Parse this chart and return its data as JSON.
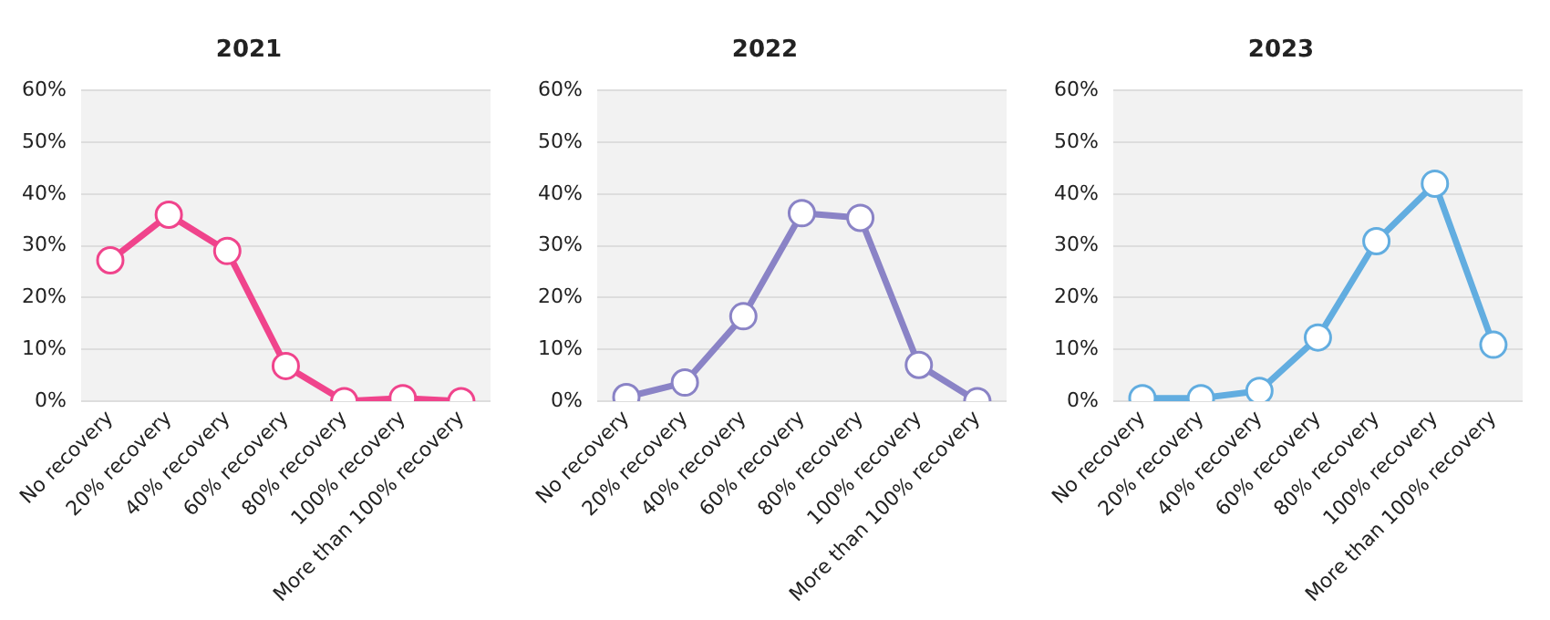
{
  "chart_data": [
    {
      "type": "line",
      "title": "2021",
      "categories": [
        "No recovery",
        "20% recovery",
        "40% recovery",
        "60% recovery",
        "80% recovery",
        "100% recovery",
        "More than 100% recovery"
      ],
      "series": [
        {
          "color": "#f0448c",
          "values": [
            27.2,
            36,
            29,
            6.8,
            0,
            0.6,
            0
          ]
        }
      ],
      "ylim": [
        0,
        60
      ],
      "yticks": [
        {
          "value": 0,
          "label": "0%"
        },
        {
          "value": 10,
          "label": "10%"
        },
        {
          "value": 20,
          "label": "20%"
        },
        {
          "value": 30,
          "label": "30%"
        },
        {
          "value": 40,
          "label": "40%"
        },
        {
          "value": 50,
          "label": "50%"
        },
        {
          "value": 60,
          "label": "60%"
        }
      ],
      "grid": "y",
      "legend": false,
      "marker": "circle",
      "line_style": "solid"
    },
    {
      "type": "line",
      "title": "2022",
      "categories": [
        "No recovery",
        "20% recovery",
        "40% recovery",
        "60% recovery",
        "80% recovery",
        "100% recovery",
        "More than 100% recovery"
      ],
      "series": [
        {
          "color": "#8a83c6",
          "values": [
            0.8,
            3.6,
            16.4,
            36.3,
            35.4,
            7,
            0
          ]
        }
      ],
      "ylim": [
        0,
        60
      ],
      "yticks": [
        {
          "value": 0,
          "label": "0%"
        },
        {
          "value": 10,
          "label": "10%"
        },
        {
          "value": 20,
          "label": "20%"
        },
        {
          "value": 30,
          "label": "30%"
        },
        {
          "value": 40,
          "label": "40%"
        },
        {
          "value": 50,
          "label": "50%"
        },
        {
          "value": 60,
          "label": "60%"
        }
      ],
      "grid": "y",
      "legend": false,
      "marker": "circle",
      "line_style": "solid"
    },
    {
      "type": "line",
      "title": "2023",
      "categories": [
        "No recovery",
        "20% recovery",
        "40% recovery",
        "60% recovery",
        "80% recovery",
        "100% recovery",
        "More than 100% recovery"
      ],
      "series": [
        {
          "color": "#62ade0",
          "values": [
            0.6,
            0.6,
            2,
            12.3,
            30.9,
            42,
            10.9
          ]
        }
      ],
      "ylim": [
        0,
        60
      ],
      "yticks": [
        {
          "value": 0,
          "label": "0%"
        },
        {
          "value": 10,
          "label": "10%"
        },
        {
          "value": 20,
          "label": "20%"
        },
        {
          "value": 30,
          "label": "30%"
        },
        {
          "value": 40,
          "label": "40%"
        },
        {
          "value": 50,
          "label": "50%"
        },
        {
          "value": 60,
          "label": "60%"
        }
      ],
      "grid": "y",
      "legend": false,
      "marker": "circle",
      "line_style": "solid"
    }
  ]
}
